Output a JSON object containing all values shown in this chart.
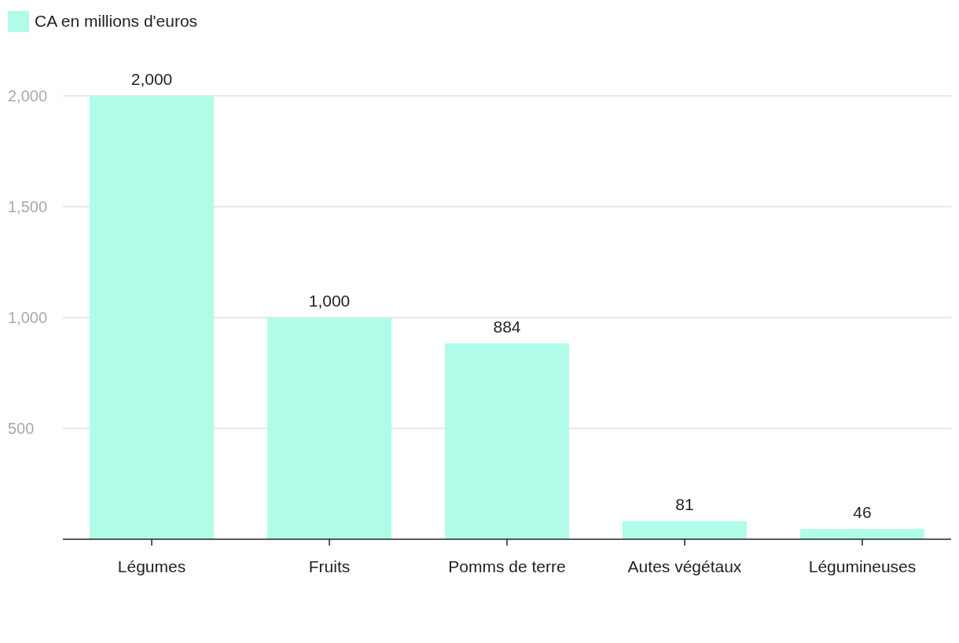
{
  "chart_data": {
    "type": "bar",
    "categories": [
      "Légumes",
      "Fruits",
      "Pomms de terre",
      "Autes végétaux",
      "Légumineuses"
    ],
    "series": [
      {
        "name": "CA en millions d'euros",
        "color": "#b1fce8",
        "values": [
          2000,
          1000,
          884,
          81,
          46
        ],
        "value_labels": [
          "2,000",
          "1,000",
          "884",
          "81",
          "46"
        ]
      }
    ],
    "ylim": [
      0,
      2000
    ],
    "yticks": [
      500,
      {
        "value": 1000,
        "label": "1,000"
      },
      {
        "value": 1500,
        "label": "1,500"
      },
      {
        "value": 2000,
        "label": "2,000"
      }
    ],
    "grid": "y",
    "legend": "top left"
  }
}
